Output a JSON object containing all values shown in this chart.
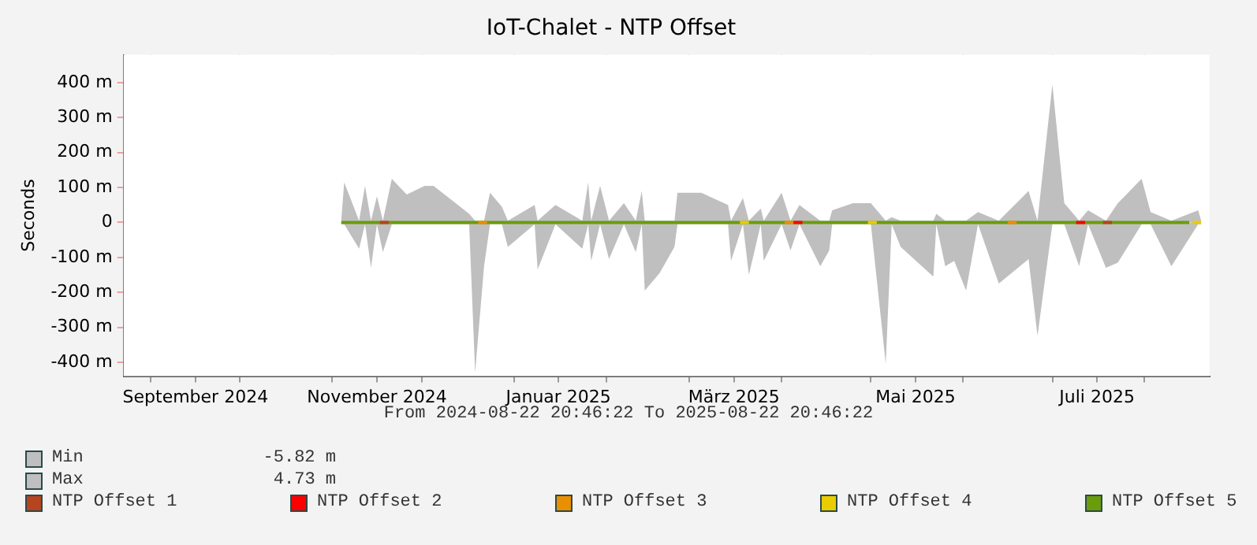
{
  "chart_data": {
    "type": "area",
    "title": "IoT-Chalet - NTP Offset",
    "ylabel": "Seconds",
    "x": [
      "2024-11-04",
      "2024-11-05",
      "2024-11-10",
      "2024-11-12",
      "2024-11-14",
      "2024-11-16",
      "2024-11-18",
      "2024-11-21",
      "2024-11-26",
      "2024-12-02",
      "2024-12-05",
      "2024-12-17",
      "2024-12-19",
      "2024-12-22",
      "2024-12-24",
      "2024-12-28",
      "2024-12-30",
      "2025-01-08",
      "2025-01-09",
      "2025-01-15",
      "2025-01-24",
      "2025-01-26",
      "2025-01-27",
      "2025-01-30",
      "2025-02-02",
      "2025-02-07",
      "2025-02-11",
      "2025-02-13",
      "2025-02-14",
      "2025-02-19",
      "2025-02-24",
      "2025-02-25",
      "2025-03-05",
      "2025-03-14",
      "2025-03-15",
      "2025-03-19",
      "2025-03-21",
      "2025-03-25",
      "2025-03-26",
      "2025-04-01",
      "2025-04-04",
      "2025-04-07",
      "2025-04-14",
      "2025-04-17",
      "2025-04-18",
      "2025-04-25",
      "2025-05-01",
      "2025-05-06",
      "2025-05-08",
      "2025-05-11",
      "2025-05-22",
      "2025-05-23",
      "2025-05-26",
      "2025-05-29",
      "2025-06-02",
      "2025-06-06",
      "2025-06-13",
      "2025-06-23",
      "2025-06-26",
      "2025-07-01",
      "2025-07-05",
      "2025-07-10",
      "2025-07-13",
      "2025-07-19",
      "2025-07-23",
      "2025-07-31",
      "2025-08-03",
      "2025-08-10",
      "2025-08-19",
      "2025-08-20"
    ],
    "series": [
      {
        "name": "Min",
        "color": "#bfbfbf",
        "values": [
          -5,
          -5,
          -75,
          -5,
          -130,
          -5,
          -85,
          -5,
          -5,
          -5,
          -5,
          -5,
          -430,
          -125,
          -5,
          -5,
          -70,
          -5,
          -135,
          -5,
          -75,
          -5,
          -110,
          -5,
          -105,
          -5,
          -85,
          -5,
          -195,
          -145,
          -70,
          -5,
          -5,
          -5,
          -110,
          -5,
          -150,
          -5,
          -110,
          -5,
          -80,
          -5,
          -125,
          -80,
          -5,
          -5,
          -5,
          -405,
          -5,
          -70,
          -155,
          -5,
          -125,
          -110,
          -195,
          -5,
          -175,
          -105,
          -325,
          -5,
          -5,
          -125,
          -5,
          -130,
          -115,
          -5,
          -5,
          -125,
          -5,
          -5
        ]
      },
      {
        "name": "Max",
        "color": "#bfbfbf",
        "values": [
          5,
          115,
          5,
          105,
          5,
          75,
          5,
          125,
          80,
          105,
          105,
          25,
          5,
          5,
          85,
          45,
          5,
          50,
          5,
          50,
          5,
          115,
          5,
          105,
          5,
          55,
          5,
          90,
          5,
          5,
          5,
          85,
          85,
          50,
          5,
          70,
          5,
          40,
          5,
          85,
          5,
          50,
          5,
          5,
          35,
          55,
          55,
          5,
          15,
          5,
          5,
          25,
          5,
          5,
          5,
          30,
          5,
          90,
          5,
          395,
          55,
          5,
          35,
          5,
          55,
          125,
          30,
          5,
          35,
          5
        ]
      },
      {
        "name": "NTP Offset 1",
        "type": "line",
        "color": "#b5441f",
        "x": [
          "2024-11-17",
          "2024-11-20",
          "2024-11-21",
          "2025-07-18",
          "2025-07-21"
        ],
        "values": [
          0,
          0,
          null,
          0,
          0
        ]
      },
      {
        "name": "NTP Offset 2",
        "type": "line",
        "color": "#ff0000",
        "x": [
          "2025-04-05",
          "2025-04-08",
          "2025-04-09",
          "2025-07-09",
          "2025-07-12"
        ],
        "values": [
          0,
          0,
          null,
          0,
          0
        ]
      },
      {
        "name": "NTP Offset 3",
        "type": "line",
        "color": "#ea8f00",
        "x": [
          "2024-12-20",
          "2024-12-23",
          "2024-12-24",
          "2025-04-02",
          "2025-04-05",
          "2025-04-06",
          "2025-06-16",
          "2025-06-19"
        ],
        "values": [
          0,
          0,
          null,
          0,
          0,
          null,
          0,
          0
        ]
      },
      {
        "name": "NTP Offset 4",
        "type": "line",
        "color": "#eacc00",
        "x": [
          "2025-03-18",
          "2025-03-21",
          "2025-03-22",
          "2025-04-30",
          "2025-05-03",
          "2025-05-04",
          "2025-08-17",
          "2025-08-20"
        ],
        "values": [
          0,
          0,
          null,
          0,
          0,
          null,
          0,
          0
        ]
      },
      {
        "name": "NTP Offset 5",
        "type": "line",
        "color": "#6a9c0c",
        "x": [
          "2024-11-04",
          "2025-01-01",
          "2025-03-01",
          "2025-05-20",
          "2025-08-16"
        ],
        "values": [
          0,
          0,
          0,
          0,
          0
        ]
      }
    ],
    "xlim": [
      "2024-08-22T20:46",
      "2025-08-22T20:46"
    ],
    "xticks": [
      {
        "value": "2024-09-01",
        "label": null
      },
      {
        "value": "2024-09-16",
        "label": "September 2024"
      },
      {
        "value": "2024-10-01",
        "label": null
      },
      {
        "value": "2024-11-01",
        "label": null
      },
      {
        "value": "2024-11-16",
        "label": "November 2024"
      },
      {
        "value": "2024-12-01",
        "label": null
      },
      {
        "value": "2025-01-01",
        "label": null
      },
      {
        "value": "2025-01-16",
        "label": "Januar 2025"
      },
      {
        "value": "2025-02-01",
        "label": null
      },
      {
        "value": "2025-03-01",
        "label": null
      },
      {
        "value": "2025-03-16",
        "label": "März 2025"
      },
      {
        "value": "2025-04-01",
        "label": null
      },
      {
        "value": "2025-05-01",
        "label": null
      },
      {
        "value": "2025-05-16",
        "label": "Mai 2025"
      },
      {
        "value": "2025-06-01",
        "label": null
      },
      {
        "value": "2025-07-01",
        "label": null
      },
      {
        "value": "2025-07-16",
        "label": "Juli 2025"
      },
      {
        "value": "2025-08-01",
        "label": null
      }
    ],
    "ylim": [
      -440,
      480
    ],
    "yticks": [
      {
        "value": -400,
        "label": "-400 m"
      },
      {
        "value": -300,
        "label": "-300 m"
      },
      {
        "value": -200,
        "label": "-200 m"
      },
      {
        "value": -100,
        "label": "-100 m"
      },
      0,
      {
        "value": 100,
        "label": "100 m"
      },
      {
        "value": 200,
        "label": "200 m"
      },
      {
        "value": 300,
        "label": "300 m"
      },
      {
        "value": 400,
        "label": "400 m"
      }
    ],
    "grid": true,
    "legend": "bottom",
    "marker": "none",
    "line_style": "solid",
    "annotations": [
      "-5.82 m",
      "4.73 m",
      "From 2024-08-22 20:46:22 To 2025-08-22 20:46:22"
    ]
  }
}
